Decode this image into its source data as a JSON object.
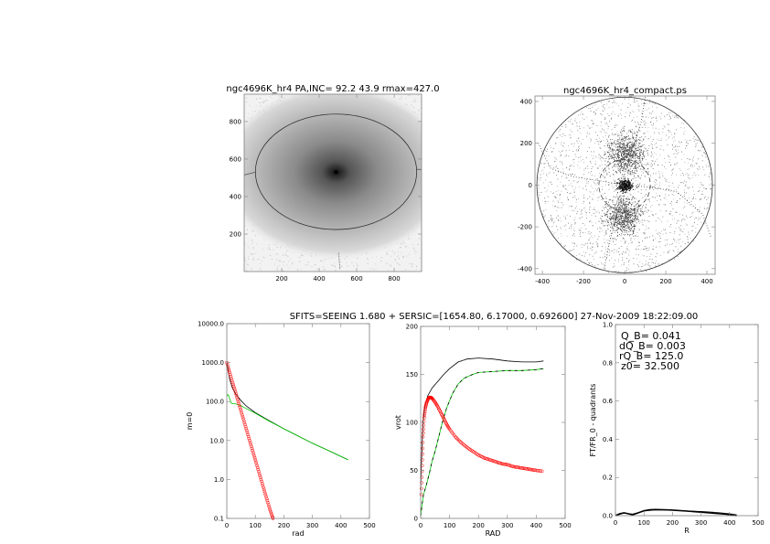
{
  "figure": {
    "header": "SFITS=SEEING 1.680 + SERSIC=[1654.80, 6.17000, 0.692600]  27-Nov-2009 18:22:09.00"
  },
  "colors": {
    "total": "#000000",
    "disk": "#00cc00",
    "bulge": "#ff0000",
    "frame": "#808080"
  },
  "chart_data": [
    {
      "type": "heatmap",
      "title": "ngc4696K_hr4 PA,INC= 92.2 43.9 rmax=427.0",
      "xlim": [
        0,
        946
      ],
      "ylim": [
        0,
        946
      ],
      "x_ticks": [
        200,
        400,
        600,
        800
      ],
      "x_tick_labels": [
        "200",
        "400",
        "600",
        "800"
      ],
      "y_ticks": [
        200,
        400,
        600,
        800
      ],
      "y_tick_labels": [
        "200",
        "400",
        "600",
        "800"
      ],
      "colormap": "grayscale, dark center",
      "galaxy_center": [
        490,
        530
      ],
      "ellipse": {
        "center": [
          490,
          532
        ],
        "semi_major": 430,
        "semi_minor": 308
      }
    },
    {
      "type": "scatter",
      "title": "ngc4696K_hr4_compact.ps",
      "xlim": [
        -436,
        440
      ],
      "ylim": [
        -427,
        426
      ],
      "x_ticks": [
        -400,
        -200,
        0,
        200,
        400
      ],
      "x_tick_labels": [
        "-400",
        "-200",
        "0",
        "200",
        "400"
      ],
      "y_ticks": [
        -400,
        -200,
        0,
        200,
        400
      ],
      "y_tick_labels": [
        "-400",
        "-200",
        "0",
        "200",
        "400"
      ],
      "outer_circle_radius": 427,
      "dashed_circle_radius": 125
    },
    {
      "type": "line",
      "xlabel": "rad",
      "ylabel": "m=0",
      "xlim": [
        0,
        500
      ],
      "ylim": [
        0.1,
        10000
      ],
      "ylog": true,
      "x_ticks": [
        0,
        100,
        200,
        300,
        400,
        500
      ],
      "x_tick_labels": [
        "0",
        "100",
        "200",
        "300",
        "400",
        "500"
      ],
      "y_ticks": [
        0.1,
        1,
        10,
        100,
        1000,
        10000
      ],
      "y_tick_labels": [
        "0.1",
        "1.0",
        "10.0",
        "100.0",
        "1000.0",
        "10000.0"
      ],
      "series": [
        {
          "color": "#000000",
          "style": "line",
          "x": [
            0,
            5,
            10,
            20,
            30,
            50,
            70,
            100,
            150,
            200,
            250,
            300,
            350,
            425
          ],
          "y": [
            1050,
            600,
            380,
            220,
            160,
            105,
            75,
            52,
            32,
            20,
            13,
            8.5,
            5.8,
            3.2
          ]
        },
        {
          "color": "#00cc00",
          "style": "line",
          "x": [
            0,
            5,
            10,
            15,
            20,
            30,
            50,
            70,
            100,
            150,
            200,
            250,
            300,
            350,
            425
          ],
          "y": [
            140,
            150,
            120,
            92,
            88,
            88,
            78,
            65,
            50,
            31,
            20,
            13,
            8.5,
            5.8,
            3.2
          ]
        },
        {
          "color": "#ff0000",
          "style": "circles",
          "x": [
            0,
            10,
            20,
            30,
            40,
            50,
            60,
            70,
            80,
            90,
            100,
            110,
            120,
            130,
            140,
            150,
            160,
            165
          ],
          "y": [
            1000,
            560,
            310,
            180,
            100,
            57,
            32,
            18,
            10,
            5.6,
            3.2,
            1.8,
            1.0,
            0.56,
            0.32,
            0.18,
            0.11,
            0.085
          ]
        }
      ]
    },
    {
      "type": "line",
      "xlabel": "RAD",
      "ylabel": "vrot",
      "xlim": [
        0,
        500
      ],
      "ylim": [
        0,
        200
      ],
      "ylog": false,
      "x_ticks": [
        0,
        100,
        200,
        300,
        400,
        500
      ],
      "x_tick_labels": [
        "0",
        "100",
        "200",
        "300",
        "400",
        "500"
      ],
      "y_ticks": [
        0,
        50,
        100,
        150,
        200
      ],
      "y_tick_labels": [
        "0",
        "50",
        "100",
        "150",
        "200"
      ],
      "series": [
        {
          "color": "#000000",
          "style": "line",
          "x": [
            0,
            3,
            8,
            15,
            25,
            40,
            60,
            80,
            100,
            130,
            160,
            200,
            250,
            300,
            350,
            400,
            425
          ],
          "y": [
            30,
            60,
            100,
            118,
            128,
            136,
            143,
            150,
            156,
            163,
            166,
            167,
            166,
            164,
            163,
            163,
            164
          ]
        },
        {
          "color": "#00cc00",
          "style": "dashed",
          "x": [
            0,
            5,
            10,
            20,
            30,
            40,
            50,
            60,
            75,
            90,
            110,
            130,
            150,
            180,
            200,
            250,
            300,
            350,
            400,
            425
          ],
          "y": [
            2,
            15,
            25,
            35,
            47,
            60,
            70,
            82,
            100,
            115,
            130,
            140,
            146,
            150,
            152,
            153,
            154,
            154,
            155,
            156
          ]
        },
        {
          "color": "#ff0000",
          "style": "circles",
          "x": [
            2,
            5,
            8,
            12,
            16,
            20,
            25,
            30,
            35,
            40,
            50,
            60,
            70,
            80,
            90,
            100,
            120,
            140,
            160,
            180,
            200,
            220,
            240,
            260,
            280,
            300,
            320,
            340,
            360,
            380,
            400,
            425
          ],
          "y": [
            25,
            55,
            85,
            105,
            115,
            120,
            124,
            126,
            126,
            125,
            121,
            116,
            110,
            104,
            98,
            93,
            85,
            79,
            74,
            70,
            66,
            63,
            61,
            59,
            57,
            56,
            54,
            53,
            52,
            51,
            50,
            49
          ]
        }
      ]
    },
    {
      "type": "line",
      "xlabel": "R",
      "ylabel": "FT/FR_0 - quadrants",
      "xlim": [
        0,
        500
      ],
      "ylim": [
        0,
        1.0
      ],
      "ylog": false,
      "x_ticks": [
        0,
        100,
        200,
        300,
        400,
        500
      ],
      "x_tick_labels": [
        "0",
        "100",
        "200",
        "300",
        "400",
        "500"
      ],
      "y_ticks": [
        0,
        0.2,
        0.4,
        0.6,
        0.8,
        1.0
      ],
      "y_tick_labels": [
        "0.0",
        "0.2",
        "0.4",
        "0.6",
        "0.8",
        "1.0"
      ],
      "annotations": [
        "Q_B=  0.041",
        "dQ_B=  0.003",
        "rQ_B=  125.0",
        "z0= 32.500"
      ],
      "series": [
        {
          "color": "#000000",
          "style": "thick",
          "x": [
            0,
            15,
            30,
            45,
            60,
            80,
            100,
            120,
            140,
            170,
            200,
            250,
            300,
            350,
            390,
            425
          ],
          "y": [
            0.0,
            0.01,
            0.015,
            0.01,
            0.005,
            0.015,
            0.026,
            0.031,
            0.032,
            0.031,
            0.029,
            0.024,
            0.018,
            0.012,
            0.007,
            0.0
          ]
        },
        {
          "color": "#000000",
          "style": "dashed",
          "x": [
            0,
            30,
            60,
            100,
            140,
            200,
            250,
            300,
            350,
            400,
            425
          ],
          "y": [
            0.0,
            0.013,
            0.008,
            0.024,
            0.03,
            0.028,
            0.025,
            0.022,
            0.017,
            0.01,
            0.005
          ]
        }
      ]
    }
  ]
}
